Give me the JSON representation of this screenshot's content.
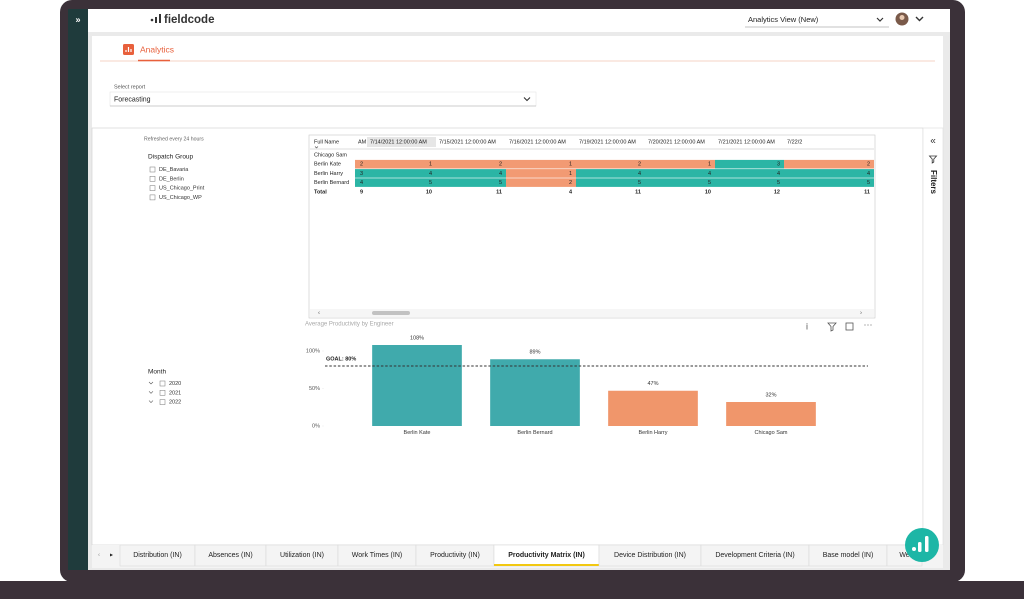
{
  "header": {
    "logo": "fieldcode",
    "view_selector": "Analytics View (New)"
  },
  "page": {
    "title": "Analytics",
    "select_label": "Select report",
    "selected_report": "Forecasting"
  },
  "report": {
    "refresh_note": "Refreshed every 24 hours",
    "dispatch_group": {
      "title": "Dispatch Group",
      "options": [
        "DE_Bavaria",
        "DE_Berlin",
        "US_Chicago_Print",
        "US_Chicago_WP"
      ]
    },
    "month": {
      "title": "Month",
      "options": [
        "2020",
        "2021",
        "2022"
      ]
    },
    "filters_label": "Filters"
  },
  "matrix": {
    "columns": [
      "Full Name",
      "AM",
      "7/14/2021 12:00:00 AM",
      "7/15/2021 12:00:00 AM",
      "7/16/2021 12:00:00 AM",
      "7/19/2021 12:00:00 AM",
      "7/20/2021 12:00:00 AM",
      "7/21/2021 12:00:00 AM",
      "7/22/2"
    ],
    "rows": [
      {
        "name": "Chicago Sam",
        "cells": [],
        "cell_colors": []
      },
      {
        "name": "Berlin Kate",
        "cells": [
          2,
          1,
          2,
          1,
          2,
          1,
          3,
          2
        ],
        "cell_colors": [
          "#f29a73",
          "#f29a73",
          "#f29a73",
          "#f29a73",
          "#f29a73",
          "#f29a73",
          "#2bb5a5",
          "#f29a73"
        ]
      },
      {
        "name": "Berlin Harry",
        "cells": [
          3,
          4,
          4,
          1,
          4,
          4,
          4,
          4
        ],
        "cell_colors": [
          "#2bb5a5",
          "#2bb5a5",
          "#2bb5a5",
          "#f29a73",
          "#2bb5a5",
          "#2bb5a5",
          "#2bb5a5",
          "#2bb5a5"
        ]
      },
      {
        "name": "Berlin Bernard",
        "cells": [
          4,
          5,
          5,
          2,
          5,
          5,
          5,
          5
        ],
        "cell_colors": [
          "#2bb5a5",
          "#2bb5a5",
          "#2bb5a5",
          "#f29a73",
          "#2bb5a5",
          "#2bb5a5",
          "#2bb5a5",
          "#2bb5a5"
        ]
      }
    ],
    "total": {
      "name": "Total",
      "cells": [
        9,
        10,
        11,
        4,
        11,
        10,
        12,
        11
      ]
    }
  },
  "chart_data": {
    "type": "bar",
    "title": "Average Productivity by Engineer",
    "categories": [
      "Berlin Kate",
      "Berlin Bernard",
      "Berlin Harry",
      "Chicago Sam"
    ],
    "values": [
      108,
      89,
      47,
      32
    ],
    "value_labels": [
      "108%",
      "89%",
      "47%",
      "32%"
    ],
    "colors": [
      "#40aaac",
      "#40aaac",
      "#f0966b",
      "#f0966b"
    ],
    "ylim": [
      0,
      110
    ],
    "yticks": [
      {
        "value": 0,
        "label": "0%"
      },
      {
        "value": 50,
        "label": "50%"
      },
      {
        "value": 100,
        "label": "100%"
      }
    ],
    "goal": {
      "value": 80,
      "label": "GOAL: 80%"
    },
    "grid": false
  },
  "tabs": {
    "items": [
      "Distribution (IN)",
      "Absences (IN)",
      "Utilization (IN)",
      "Work Times (IN)",
      "Productivity (IN)",
      "Productivity Matrix (IN)",
      "Device Distribution (IN)",
      "Development Criteria (IN)",
      "Base model (IN)",
      "We"
    ],
    "active": 5
  }
}
